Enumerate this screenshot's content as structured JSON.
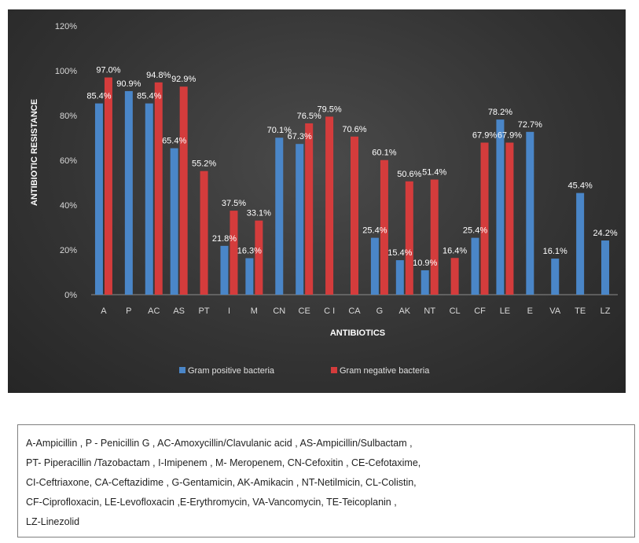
{
  "chart_data": {
    "type": "bar",
    "categories": [
      "A",
      "P",
      "AC",
      "AS",
      "PT",
      "I",
      "M",
      "CN",
      "CE",
      "C I",
      "CA",
      "G",
      "AK",
      "NT",
      "CL",
      "CF",
      "LE",
      "E",
      "VA",
      "TE",
      "LZ"
    ],
    "series": [
      {
        "name": "Gram positive bacteria",
        "color": "#4a86c8",
        "values": [
          85.4,
          90.9,
          85.4,
          65.4,
          null,
          21.8,
          16.3,
          70.1,
          67.3,
          null,
          null,
          25.4,
          15.4,
          10.9,
          null,
          25.4,
          78.2,
          72.7,
          16.1,
          45.4,
          24.2
        ]
      },
      {
        "name": "Gram negative bacteria",
        "color": "#d43c3c",
        "values": [
          97.0,
          null,
          94.8,
          92.9,
          55.2,
          37.5,
          33.1,
          null,
          76.5,
          79.5,
          70.6,
          60.1,
          50.6,
          51.4,
          16.4,
          67.9,
          67.9,
          null,
          null,
          null,
          null
        ]
      }
    ],
    "yticks": [
      "0%",
      "20%",
      "40%",
      "60%",
      "80%",
      "100%",
      "120%"
    ],
    "ylim": [
      0,
      120
    ],
    "xlabel": "ANTIBIOTICS",
    "ylabel": "ANTIBIOTIC RESISTANCE",
    "legend_position": "bottom",
    "grid": false
  },
  "legend_text": {
    "lines": [
      "A-Ampicillin  , P - Penicillin  G , AC-Amoxycillin/Clavulanic  acid , AS-Ampicillin/Sulbactam  ,",
      "PT- Piperacillin /Tazobactam , I-Imipenem , M- Meropenem,  CN-Cefoxitin , CE-Cefotaxime,",
      "CI-Ceftriaxone, CA-Ceftazidime , G-Gentamicin, AK-Amikacin  , NT-Netilmicin, CL-Colistin,",
      "CF-Ciprofloxacin,  LE-Levofloxacin ,E-Erythromycin,  VA-Vancomycin,  TE-Teicoplanin  ,",
      " LZ-Linezolid"
    ]
  }
}
